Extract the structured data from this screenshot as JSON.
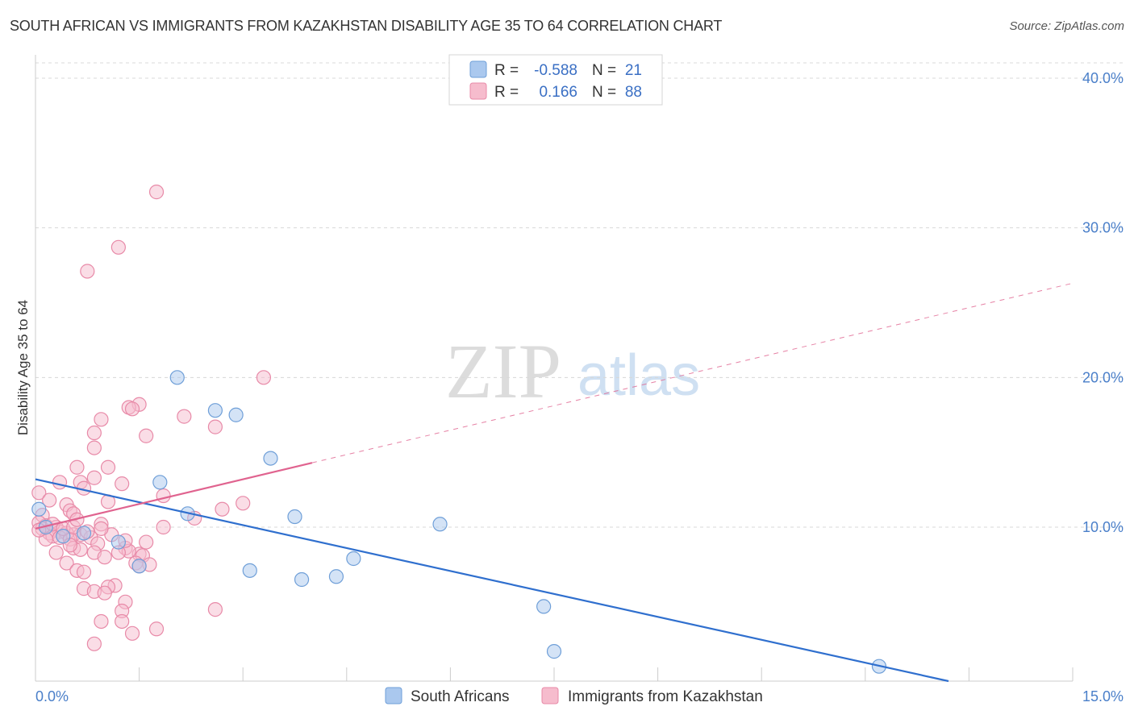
{
  "header": {
    "title": "SOUTH AFRICAN VS IMMIGRANTS FROM KAZAKHSTAN DISABILITY AGE 35 TO 64 CORRELATION CHART",
    "source": "Source: ZipAtlas.com"
  },
  "watermark": {
    "zip": "ZIP",
    "atlas": "atlas"
  },
  "legend": {
    "rows": [
      {
        "r_label": "R =",
        "r_value": "-0.588",
        "n_label": "N =",
        "n_value": "21"
      },
      {
        "r_label": "R =",
        "r_value": "0.166",
        "n_label": "N =",
        "n_value": "88"
      }
    ]
  },
  "colors": {
    "blue_fill": "#aac8ee",
    "blue_stroke": "#6f9fd8",
    "blue_line": "#2f6fce",
    "pink_fill": "#f6bccd",
    "pink_stroke": "#e88aa8",
    "pink_line": "#e0638f",
    "grid": "#d8d8d8",
    "tick_label": "#4a7fc9"
  },
  "chart_data": {
    "type": "scatter",
    "title": "SOUTH AFRICAN VS IMMIGRANTS FROM KAZAKHSTAN DISABILITY AGE 35 TO 64 CORRELATION CHART",
    "xlabel": "",
    "ylabel": "Disability Age 35 to 64",
    "xlim": [
      0,
      15
    ],
    "ylim": [
      0,
      40
    ],
    "x_ticks": [
      "0.0%",
      "15.0%"
    ],
    "y_ticks": [
      {
        "value": 10,
        "label": "10.0%"
      },
      {
        "value": 20,
        "label": "20.0%"
      },
      {
        "value": 30,
        "label": "30.0%"
      },
      {
        "value": 40,
        "label": "40.0%"
      }
    ],
    "grid": true,
    "legend_position": "top-center",
    "series": [
      {
        "name": "South Africans",
        "color": "#aac8ee",
        "r": -0.588,
        "n": 21,
        "trend": {
          "x": [
            0,
            15
          ],
          "y": [
            13.2,
            -1.3
          ]
        },
        "points": [
          [
            0.05,
            11.2
          ],
          [
            0.4,
            9.4
          ],
          [
            0.7,
            9.6
          ],
          [
            1.2,
            9.0
          ],
          [
            1.5,
            7.4
          ],
          [
            1.8,
            13.0
          ],
          [
            2.05,
            20.0
          ],
          [
            2.2,
            10.9
          ],
          [
            2.6,
            17.8
          ],
          [
            2.9,
            17.5
          ],
          [
            3.1,
            7.1
          ],
          [
            3.4,
            14.6
          ],
          [
            3.75,
            10.7
          ],
          [
            3.85,
            6.5
          ],
          [
            4.35,
            6.7
          ],
          [
            4.6,
            7.9
          ],
          [
            5.85,
            10.2
          ],
          [
            7.35,
            4.7
          ],
          [
            7.5,
            1.7
          ],
          [
            12.2,
            0.7
          ],
          [
            0.15,
            10.0
          ]
        ]
      },
      {
        "name": "Immigrants from Kazakhstan",
        "color": "#f6bccd",
        "r": 0.166,
        "n": 88,
        "trend": {
          "x": [
            0,
            4
          ],
          "y": [
            9.9,
            14.3
          ]
        },
        "trend_extension": {
          "x": [
            4,
            15
          ],
          "y": [
            14.3,
            26.3
          ]
        },
        "points": [
          [
            1.75,
            32.4
          ],
          [
            1.2,
            28.7
          ],
          [
            0.75,
            27.1
          ],
          [
            3.3,
            20.0
          ],
          [
            1.5,
            18.2
          ],
          [
            1.35,
            18.0
          ],
          [
            1.4,
            17.9
          ],
          [
            2.15,
            17.4
          ],
          [
            0.95,
            17.2
          ],
          [
            2.6,
            16.7
          ],
          [
            1.6,
            16.1
          ],
          [
            0.85,
            16.3
          ],
          [
            0.85,
            15.3
          ],
          [
            0.6,
            14.0
          ],
          [
            1.05,
            14.0
          ],
          [
            0.85,
            13.3
          ],
          [
            0.65,
            13.0
          ],
          [
            0.35,
            13.0
          ],
          [
            1.25,
            12.9
          ],
          [
            0.7,
            12.6
          ],
          [
            1.85,
            12.1
          ],
          [
            0.05,
            12.3
          ],
          [
            1.05,
            11.7
          ],
          [
            3.0,
            11.6
          ],
          [
            0.2,
            11.8
          ],
          [
            0.45,
            11.5
          ],
          [
            2.7,
            11.2
          ],
          [
            0.5,
            11.1
          ],
          [
            0.55,
            10.9
          ],
          [
            0.95,
            10.2
          ],
          [
            0.1,
            10.8
          ],
          [
            2.3,
            10.6
          ],
          [
            0.15,
            10.1
          ],
          [
            1.85,
            10.0
          ],
          [
            0.3,
            10.0
          ],
          [
            0.35,
            9.7
          ],
          [
            0.2,
            9.6
          ],
          [
            0.05,
            10.3
          ],
          [
            0.1,
            9.9
          ],
          [
            0.55,
            9.5
          ],
          [
            0.45,
            9.6
          ],
          [
            0.65,
            9.5
          ],
          [
            0.25,
            9.4
          ],
          [
            0.35,
            9.3
          ],
          [
            0.15,
            9.2
          ],
          [
            0.5,
            9.2
          ],
          [
            0.8,
            9.3
          ],
          [
            1.1,
            9.5
          ],
          [
            0.9,
            8.9
          ],
          [
            1.3,
            8.6
          ],
          [
            0.55,
            8.6
          ],
          [
            0.65,
            8.5
          ],
          [
            1.6,
            9.0
          ],
          [
            0.85,
            8.3
          ],
          [
            0.3,
            8.3
          ],
          [
            1.0,
            8.0
          ],
          [
            1.5,
            8.2
          ],
          [
            1.55,
            8.1
          ],
          [
            1.35,
            8.4
          ],
          [
            1.45,
            7.6
          ],
          [
            1.65,
            7.5
          ],
          [
            0.45,
            7.6
          ],
          [
            0.6,
            7.1
          ],
          [
            0.7,
            7.0
          ],
          [
            1.15,
            6.1
          ],
          [
            1.05,
            6.0
          ],
          [
            0.7,
            5.9
          ],
          [
            0.85,
            5.7
          ],
          [
            1.0,
            5.6
          ],
          [
            1.3,
            5.0
          ],
          [
            1.25,
            4.4
          ],
          [
            2.6,
            4.5
          ],
          [
            0.95,
            3.7
          ],
          [
            1.25,
            3.7
          ],
          [
            1.75,
            3.2
          ],
          [
            1.4,
            2.9
          ],
          [
            0.85,
            2.2
          ],
          [
            1.5,
            7.4
          ],
          [
            0.25,
            10.2
          ],
          [
            0.05,
            9.8
          ],
          [
            0.75,
            9.7
          ],
          [
            0.95,
            9.9
          ],
          [
            1.3,
            9.1
          ],
          [
            0.4,
            9.9
          ],
          [
            0.55,
            10.0
          ],
          [
            0.6,
            10.5
          ],
          [
            1.2,
            8.3
          ],
          [
            0.5,
            8.8
          ]
        ]
      }
    ]
  }
}
